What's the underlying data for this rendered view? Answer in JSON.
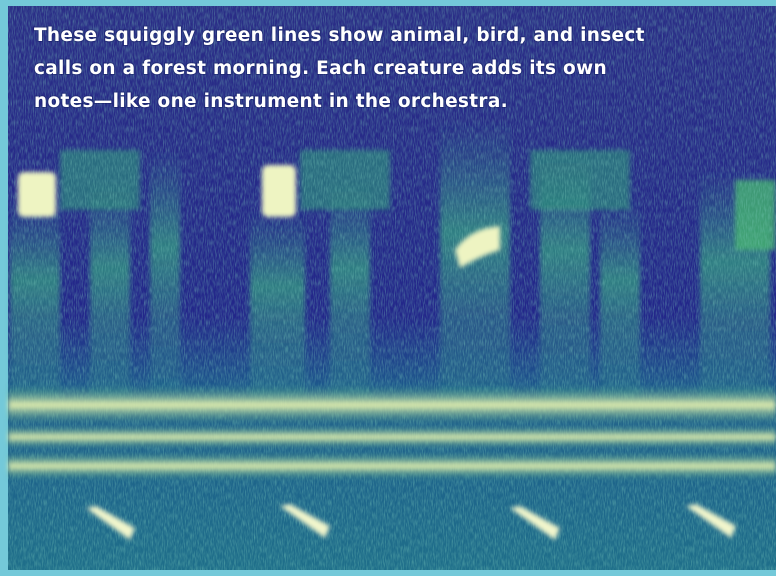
{
  "caption_lines": [
    "These squiggly green lines show animal, bird, and insect",
    "calls on a forest morning. Each creature adds its own",
    "notes—like one instrument in the orchestra."
  ]
}
